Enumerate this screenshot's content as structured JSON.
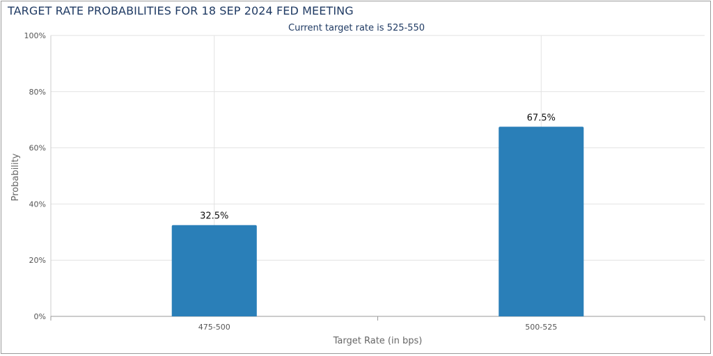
{
  "chart_data": {
    "type": "bar",
    "title": "TARGET RATE PROBABILITIES FOR 18 SEP 2024 FED MEETING",
    "subtitle": "Current target rate is 525-550",
    "xlabel": "Target Rate (in bps)",
    "ylabel": "Probability",
    "categories": [
      "475-500",
      "500-525"
    ],
    "values": [
      32.5,
      67.5
    ],
    "value_labels": [
      "32.5%",
      "67.5%"
    ],
    "ylim": [
      0,
      100
    ],
    "yticks": [
      0,
      20,
      40,
      60,
      80,
      100
    ],
    "ytick_labels": [
      "0%",
      "20%",
      "40%",
      "60%",
      "80%",
      "100%"
    ],
    "grid": true,
    "legend": "none",
    "colors": {
      "bar": "#2a7fb8",
      "title": "#1f3a63",
      "grid": "#e2e2e2",
      "axis": "#999999"
    }
  }
}
